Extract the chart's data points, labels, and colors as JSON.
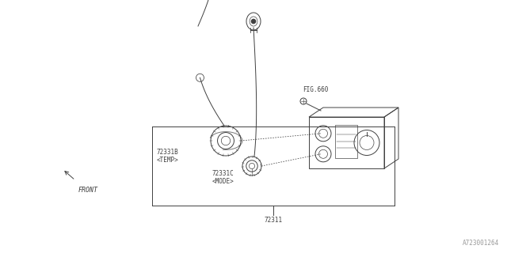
{
  "bg_color": "#ffffff",
  "line_color": "#404040",
  "text_color": "#404040",
  "fig_width": 6.4,
  "fig_height": 3.2,
  "dpi": 100,
  "part_number_label": "72311",
  "part_b_label": "72331B\n<TEMP>",
  "part_c_label": "72331C\n<MODE>",
  "fig660_label": "FIG.660",
  "watermark": "A723001264",
  "font_size_parts": 5.5,
  "font_size_watermark": 5.5,
  "font_size_fig": 5.5
}
